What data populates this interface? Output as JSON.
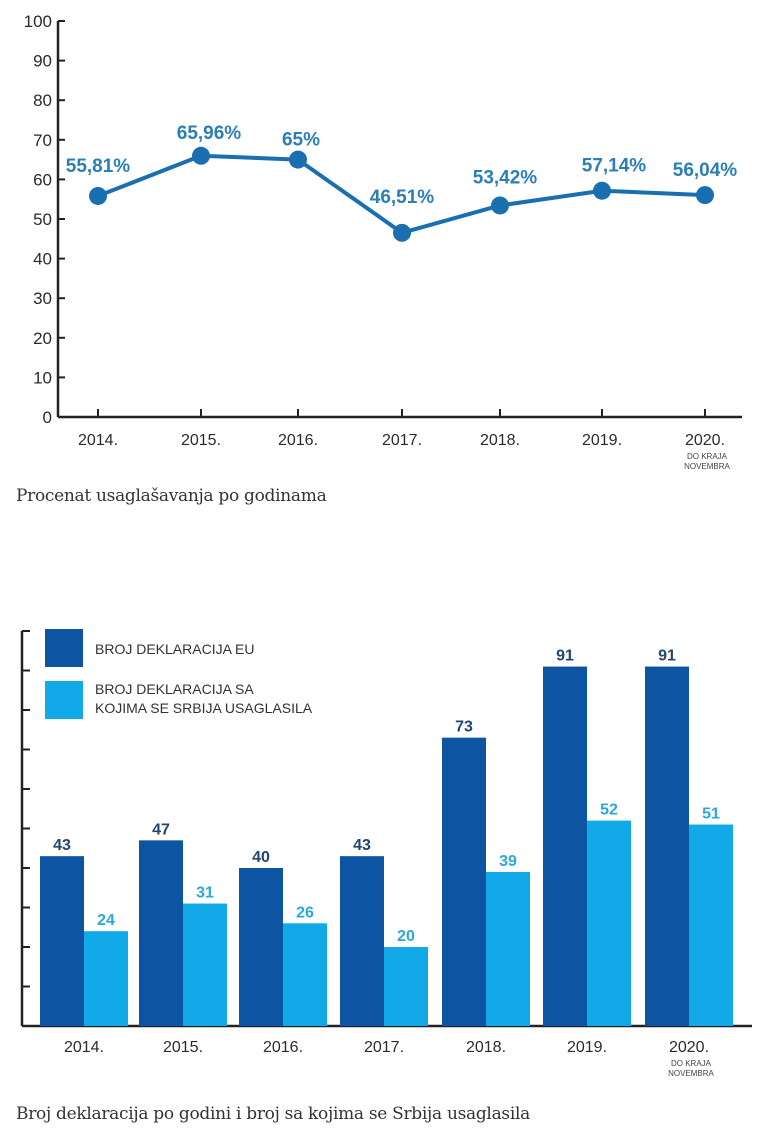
{
  "colors": {
    "line": "#1a6fb0",
    "point_label": "#2b7fb8",
    "axis": "#222222",
    "eu_bar": "#0d55a3",
    "serbia_bar": "#12a9e8",
    "eu_label": "#23466e",
    "serbia_label": "#2aa8d8"
  },
  "chart_data": [
    {
      "type": "line",
      "title": "",
      "caption": "Procenat usaglašavanja po godinama",
      "xlabel": "",
      "ylabel": "",
      "categories": [
        "2014.",
        "2015.",
        "2016.",
        "2017.",
        "2018.",
        "2019.",
        "2020."
      ],
      "category_notes": [
        "",
        "",
        "",
        "",
        "",
        "",
        "DO KRAJA\nNOVEMBRA"
      ],
      "values": [
        55.81,
        65.96,
        65,
        46.51,
        53.42,
        57.14,
        56.04
      ],
      "data_labels": [
        "55,81%",
        "65,96%",
        "65%",
        "46,51%",
        "53,42%",
        "57,14%",
        "56,04%"
      ],
      "ylim": [
        0,
        100
      ],
      "yticks": [
        0,
        10,
        20,
        30,
        40,
        50,
        60,
        70,
        80,
        90,
        100
      ],
      "grid": false,
      "legend": "none"
    },
    {
      "type": "bar",
      "title": "",
      "caption": "Broj deklaracija po godini i broj sa kojima se Srbija usaglasila",
      "xlabel": "",
      "ylabel": "",
      "categories": [
        "2014.",
        "2015.",
        "2016.",
        "2017.",
        "2018.",
        "2019.",
        "2020."
      ],
      "category_notes": [
        "",
        "",
        "",
        "",
        "",
        "",
        "DO KRAJA\nNOVEMBRA"
      ],
      "series": [
        {
          "name": "BROJ DEKLARACIJA EU",
          "values": [
            43,
            47,
            40,
            43,
            73,
            91,
            91
          ]
        },
        {
          "name": "BROJ DEKLARACIJA SA KOJIMA SE SRBIJA USAGLASILA",
          "values": [
            24,
            31,
            26,
            20,
            39,
            52,
            51
          ]
        }
      ],
      "legend_lines": [
        [
          "BROJ DEKLARACIJA EU"
        ],
        [
          "BROJ DEKLARACIJA SA",
          "KOJIMA SE SRBIJA USAGLASILA"
        ]
      ],
      "ylim": [
        0,
        100
      ],
      "ytick_count": 10,
      "ytick_labels": false,
      "grid": false,
      "legend": "top-left"
    }
  ]
}
